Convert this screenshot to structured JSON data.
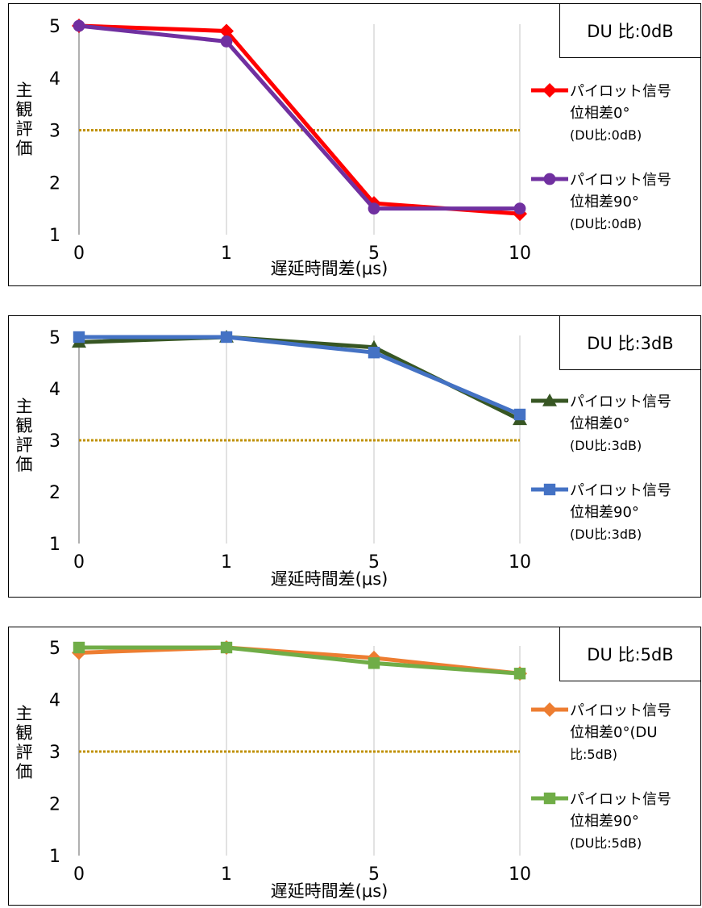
{
  "chart_data": [
    {
      "type": "line",
      "annotation": "DU 比:0dB",
      "xlabel": "遅延時間差(μs)",
      "ylabel": "主観評価",
      "categories": [
        "0",
        "1",
        "5",
        "10"
      ],
      "ylim": [
        1,
        5
      ],
      "yticks": [
        "1",
        "2",
        "3",
        "4",
        "5"
      ],
      "reference_line": {
        "value": 3,
        "color": "#BF9000",
        "style": "dotted"
      },
      "legend_position": "right",
      "grid": "vertical",
      "series": [
        {
          "name": "パイロット信号位相差0°(DU比:0dB)",
          "line1": "パイロット信号",
          "line2": "位相差0°",
          "line3": "(DU比:0dB)",
          "color": "#FF0000",
          "marker": "diamond",
          "values": [
            5.0,
            4.9,
            1.6,
            1.4
          ]
        },
        {
          "name": "パイロット信号位相差90°(DU比:0dB)",
          "line1": "パイロット信号",
          "line2": "位相差90°",
          "line3": "(DU比:0dB)",
          "color": "#7030A0",
          "marker": "circle",
          "values": [
            5.0,
            4.7,
            1.5,
            1.5
          ]
        }
      ]
    },
    {
      "type": "line",
      "annotation": "DU 比:3dB",
      "xlabel": "遅延時間差(μs)",
      "ylabel": "主観評価",
      "categories": [
        "0",
        "1",
        "5",
        "10"
      ],
      "ylim": [
        1,
        5
      ],
      "yticks": [
        "1",
        "2",
        "3",
        "4",
        "5"
      ],
      "reference_line": {
        "value": 3,
        "color": "#BF9000",
        "style": "dotted"
      },
      "legend_position": "right",
      "grid": "vertical",
      "series": [
        {
          "name": "パイロット信号位相差0°(DU比:3dB)",
          "line1": "パイロット信号",
          "line2": "位相差0°",
          "line3": "(DU比:3dB)",
          "color": "#375623",
          "marker": "triangle",
          "values": [
            4.9,
            5.0,
            4.8,
            3.4
          ]
        },
        {
          "name": "パイロット信号位相差90°(DU比:3dB)",
          "line1": "パイロット信号",
          "line2": "位相差90°",
          "line3": "(DU比:3dB)",
          "color": "#4472C4",
          "marker": "square",
          "values": [
            5.0,
            5.0,
            4.7,
            3.5
          ]
        }
      ]
    },
    {
      "type": "line",
      "annotation": "DU 比:5dB",
      "xlabel": "遅延時間差(μs)",
      "ylabel": "主観評価",
      "categories": [
        "0",
        "1",
        "5",
        "10"
      ],
      "ylim": [
        1,
        5
      ],
      "yticks": [
        "1",
        "2",
        "3",
        "4",
        "5"
      ],
      "reference_line": {
        "value": 3,
        "color": "#BF9000",
        "style": "dotted"
      },
      "legend_position": "right",
      "grid": "vertical",
      "series": [
        {
          "name": "パイロット信号位相差0°(DU比:5dB)",
          "line1": "パイロット信号",
          "line2": "位相差0°(DU",
          "line3": "比:5dB)",
          "color": "#ED7D31",
          "marker": "diamond",
          "values": [
            4.9,
            5.0,
            4.8,
            4.5
          ]
        },
        {
          "name": "パイロット信号位相差90°(DU比:5dB)",
          "line1": "パイロット信号",
          "line2": "位相差90°",
          "line3": "(DU比:5dB)",
          "color": "#70AD47",
          "marker": "square",
          "values": [
            5.0,
            5.0,
            4.7,
            4.5
          ]
        }
      ]
    }
  ]
}
